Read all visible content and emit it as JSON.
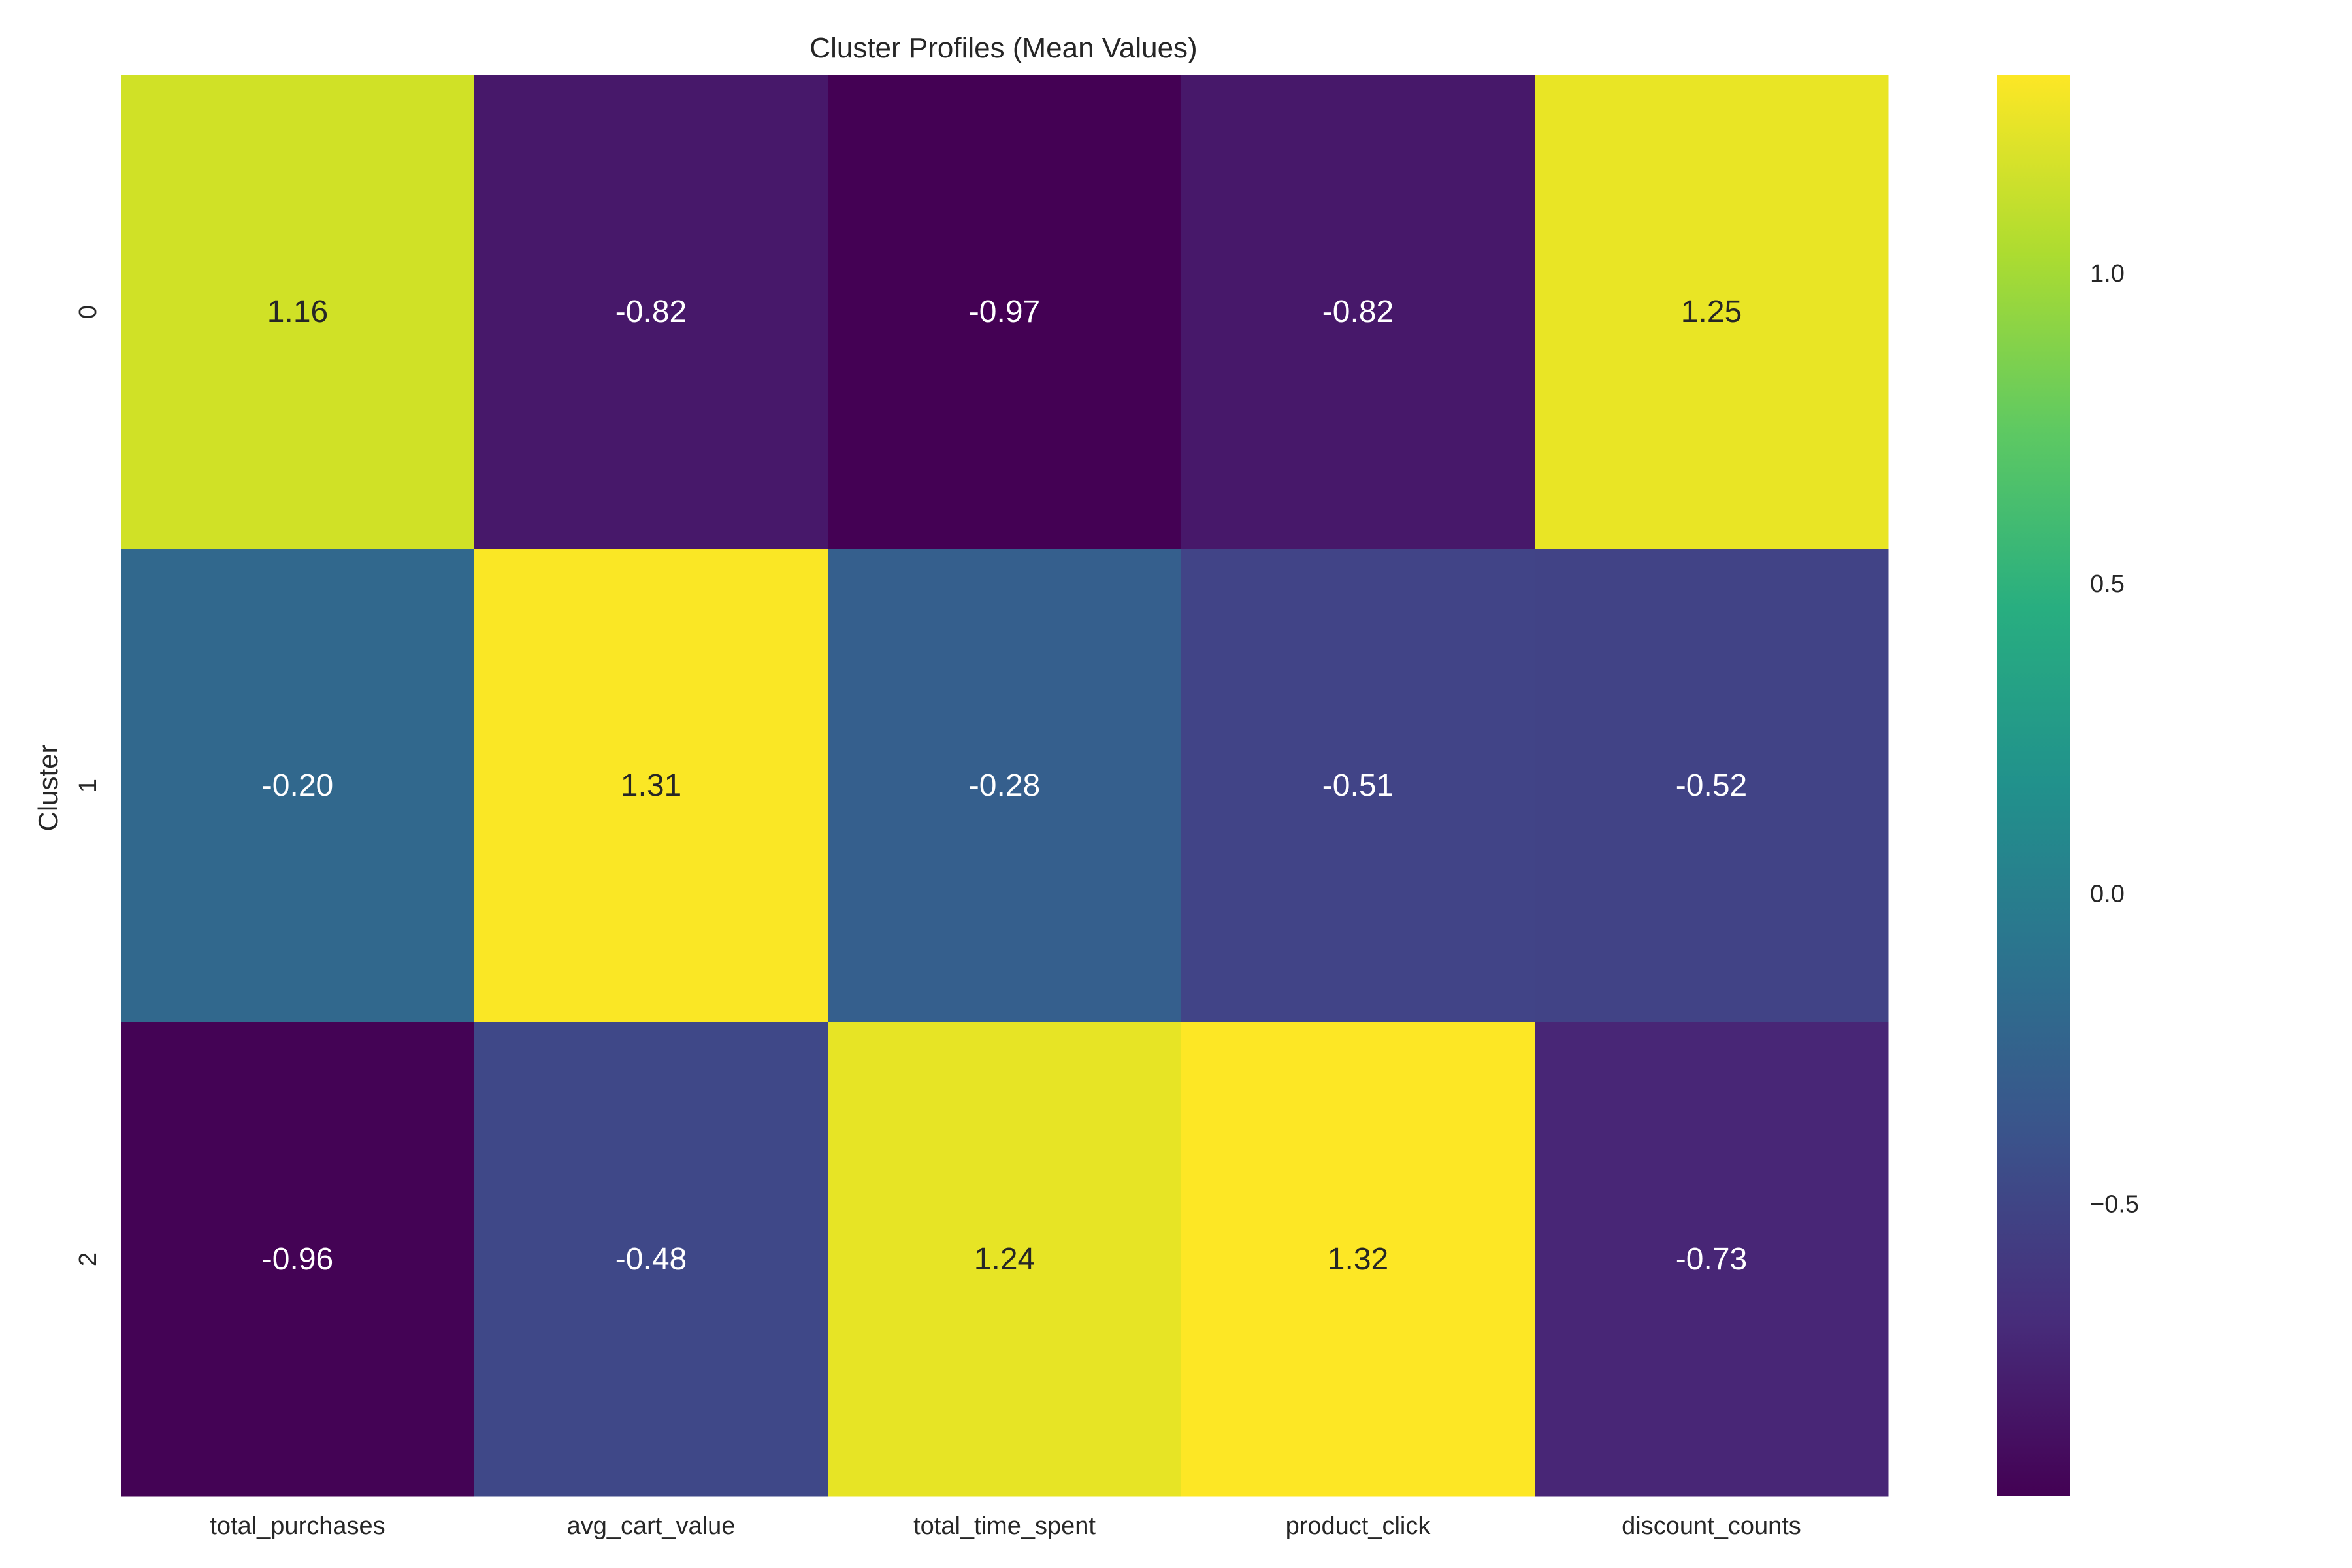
{
  "chart_data": {
    "type": "heatmap",
    "title": "Cluster Profiles (Mean Values)",
    "xlabel": "",
    "ylabel": "Cluster",
    "x_categories": [
      "total_purchases",
      "avg_cart_value",
      "total_time_spent",
      "product_click",
      "discount_counts"
    ],
    "y_categories": [
      "0",
      "1",
      "2"
    ],
    "values": [
      [
        1.16,
        -0.82,
        -0.97,
        -0.82,
        1.25
      ],
      [
        -0.2,
        1.31,
        -0.28,
        -0.51,
        -0.52
      ],
      [
        -0.96,
        -0.48,
        1.24,
        1.32,
        -0.73
      ]
    ],
    "value_labels": [
      [
        "1.16",
        "-0.82",
        "-0.97",
        "-0.82",
        "1.25"
      ],
      [
        "-0.20",
        "1.31",
        "-0.28",
        "-0.51",
        "-0.52"
      ],
      [
        "-0.96",
        "-0.48",
        "1.24",
        "1.32",
        "-0.73"
      ]
    ],
    "colormap": "viridis",
    "vmin": -0.97,
    "vmax": 1.32,
    "colorbar": {
      "ticks": [
        1.0,
        0.5,
        0.0,
        -0.5
      ],
      "tick_labels": [
        "1.0",
        "0.5",
        "0.0",
        "−0.5"
      ],
      "placement": "right"
    },
    "grid": false
  }
}
